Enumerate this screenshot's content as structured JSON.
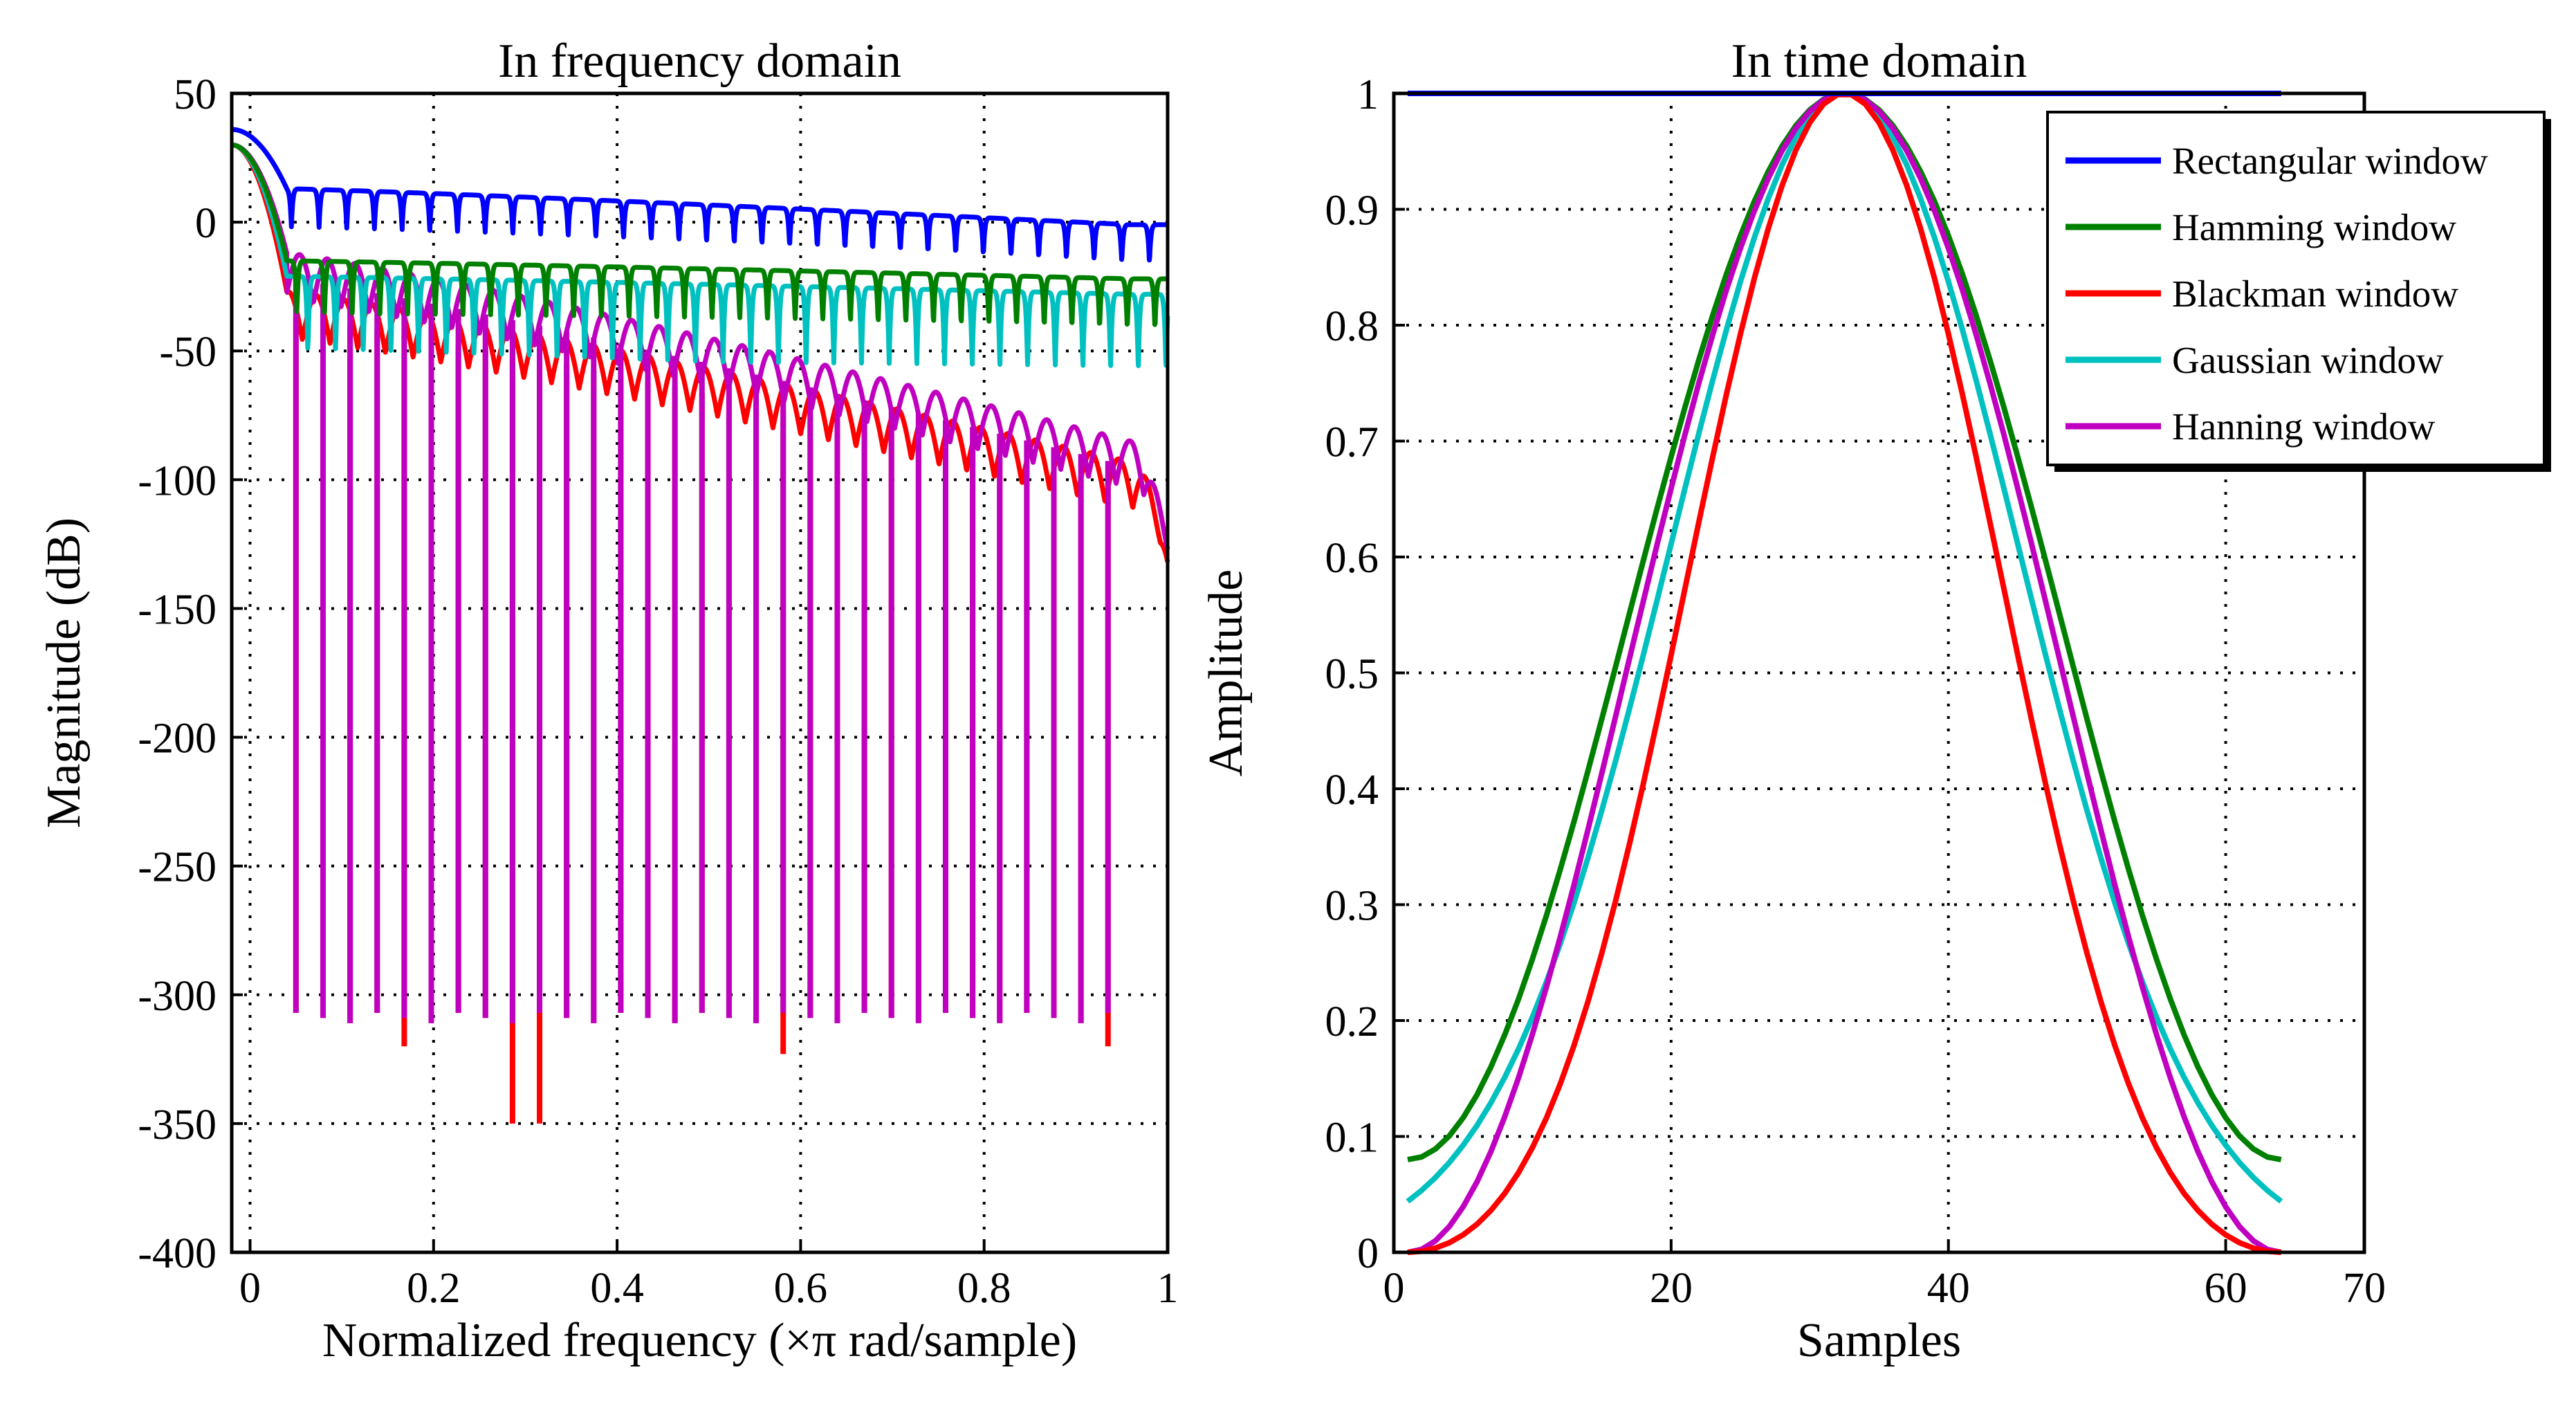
{
  "chart_data": [
    {
      "type": "line",
      "title": "In frequency domain",
      "xlabel": "Normalized frequency  (×π rad/sample)",
      "ylabel": "Magnitude (dB)",
      "xlim": [
        -0.02,
        1.0
      ],
      "ylim": [
        -400,
        50
      ],
      "xticks": [
        0,
        0.2,
        0.4,
        0.6,
        0.8,
        1
      ],
      "xtick_labels": [
        "0",
        "0.2",
        "0.4",
        "0.6",
        "0.8",
        "1"
      ],
      "yticks": [
        50,
        0,
        -50,
        -100,
        -150,
        -200,
        -250,
        -300,
        -350,
        -400
      ],
      "ytick_labels": [
        "50",
        "0",
        "-50",
        "-100",
        "-150",
        "-200",
        "-250",
        "-300",
        "-350",
        "-400"
      ],
      "grid": true,
      "legend": "none",
      "series": [
        {
          "name": "Rectangular window",
          "color": "#0000ff",
          "mainlobe_db": 36,
          "envelope_start_db": 13,
          "envelope_end_db": -1,
          "null_depth_db": 15,
          "null_count": 31
        },
        {
          "name": "Hamming window",
          "color": "#008000",
          "mainlobe_db": 30,
          "envelope_start_db": -15,
          "envelope_end_db": -22,
          "null_depth_db": 20,
          "null_count": 31
        },
        {
          "name": "Blackman window",
          "color": "#ff0000",
          "mainlobe_db": 30,
          "envelope_start_db": -27,
          "envelope_end_db": -93,
          "envelope_end_value_db": -132,
          "null_floor_db": -307,
          "deep_nulls": [
            {
              "x": 0.17,
              "y": -320
            },
            {
              "x": 0.3,
              "y": -350
            },
            {
              "x": 0.58,
              "y": -323
            },
            {
              "x": 0.95,
              "y": -320
            }
          ]
        },
        {
          "name": "Gaussian window",
          "color": "#00c0c0",
          "mainlobe_db": 30,
          "envelope_start_db": -21,
          "envelope_end_db": -28,
          "null_depth_db": 30,
          "null_count": 31
        },
        {
          "name": "Hanning window",
          "color": "#c000c0",
          "mainlobe_db": 30,
          "envelope_start_db": -12,
          "envelope_end_db": -85,
          "envelope_end_value_db": -127,
          "null_floor_db": -307,
          "null_count": 31
        }
      ]
    },
    {
      "type": "line",
      "title": "In time domain",
      "xlabel": "Samples",
      "ylabel": "Amplitude",
      "xlim": [
        0,
        70
      ],
      "ylim": [
        0,
        1
      ],
      "xticks": [
        0,
        20,
        40,
        60,
        70
      ],
      "xtick_labels": [
        "0",
        "20",
        "40",
        "60",
        "70"
      ],
      "yticks": [
        0,
        0.1,
        0.2,
        0.3,
        0.4,
        0.5,
        0.6,
        0.7,
        0.8,
        0.9,
        1
      ],
      "ytick_labels": [
        "0",
        "0.1",
        "0.2",
        "0.3",
        "0.4",
        "0.5",
        "0.6",
        "0.7",
        "0.8",
        "0.9",
        "1"
      ],
      "grid": true,
      "legend": "top-right",
      "window_length": 64,
      "sample_start": 1,
      "series": [
        {
          "name": "Rectangular window",
          "color": "#0000ff",
          "window": "rectangular"
        },
        {
          "name": "Hamming window",
          "color": "#008000",
          "window": "hamming"
        },
        {
          "name": "Blackman window",
          "color": "#ff0000",
          "window": "blackman"
        },
        {
          "name": "Gaussian window",
          "color": "#00c0c0",
          "window": "gaussian",
          "alpha": 2.5
        },
        {
          "name": "Hanning window",
          "color": "#c000c0",
          "window": "hanning"
        }
      ]
    }
  ]
}
